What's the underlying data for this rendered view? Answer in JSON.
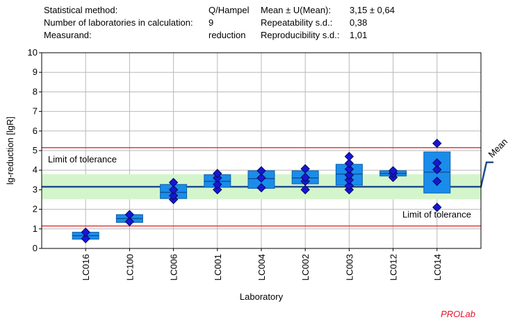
{
  "summary": {
    "rows": [
      {
        "label": "Statistical method:",
        "value": "Q/Hampel",
        "label2": "Mean ± U(Mean):",
        "value2": "3,15 ± 0,64"
      },
      {
        "label": "Number of laboratories in calculation:",
        "value": "9",
        "label2": "Repeatability s.d.:",
        "value2": "0,38"
      },
      {
        "label": "Measurand:",
        "value": "reduction",
        "label2": "Reproducibility s.d.:",
        "value2": "1,01"
      }
    ]
  },
  "brand": "PROLab",
  "colors": {
    "box_fill": "#1a8ceb",
    "box_stroke": "#1060a8",
    "diamond_fill": "#1616d6",
    "diamond_stroke": "#0a0a60",
    "mean_line": "#1f4e8c",
    "tolerance_line": "#e23a3a",
    "band_fill": "#d4f5cc",
    "grid": "#b8b8b8"
  },
  "chart_data": {
    "type": "box",
    "xlabel": "Laboratory",
    "ylabel": "lg-reduction [lgR]",
    "ylim": [
      0,
      10
    ],
    "yticks": [
      0,
      1,
      2,
      3,
      4,
      5,
      6,
      7,
      8,
      9,
      10
    ],
    "grid": true,
    "mean": 3.15,
    "mean_label": "Mean",
    "uncertainty_band": [
      2.51,
      3.79
    ],
    "limit_upper": 5.15,
    "limit_lower": 1.15,
    "limit_upper_label": "Limit of tolerance",
    "limit_lower_label": "Limit of tolerance",
    "labs": [
      {
        "name": "LC016",
        "box": [
          0.47,
          0.83
        ],
        "median": 0.65,
        "points": [
          0.5,
          0.83
        ]
      },
      {
        "name": "LC100",
        "box": [
          1.33,
          1.73
        ],
        "median": 1.53,
        "points": [
          1.37,
          1.73
        ]
      },
      {
        "name": "LC006",
        "box": [
          2.55,
          3.27
        ],
        "median": 2.87,
        "points": [
          2.5,
          2.7,
          3.0,
          3.37
        ]
      },
      {
        "name": "LC001",
        "box": [
          3.13,
          3.77
        ],
        "median": 3.43,
        "points": [
          3.0,
          3.27,
          3.6,
          3.83
        ]
      },
      {
        "name": "LC004",
        "box": [
          3.07,
          3.97
        ],
        "median": 3.57,
        "points": [
          3.1,
          3.6,
          3.97
        ]
      },
      {
        "name": "LC002",
        "box": [
          3.3,
          3.97
        ],
        "median": 3.6,
        "points": [
          3.0,
          3.43,
          3.63,
          4.07
        ]
      },
      {
        "name": "LC003",
        "box": [
          3.23,
          4.3
        ],
        "median": 3.8,
        "points": [
          3.0,
          3.2,
          3.5,
          3.75,
          4.05,
          4.35,
          4.7
        ]
      },
      {
        "name": "LC012",
        "box": [
          3.7,
          3.97
        ],
        "median": 3.83,
        "points": [
          3.63,
          3.83,
          3.97
        ]
      },
      {
        "name": "LC014",
        "box": [
          2.83,
          4.93
        ],
        "median": 3.9,
        "points": [
          2.1,
          3.43,
          4.03,
          4.37,
          5.37
        ]
      }
    ]
  }
}
